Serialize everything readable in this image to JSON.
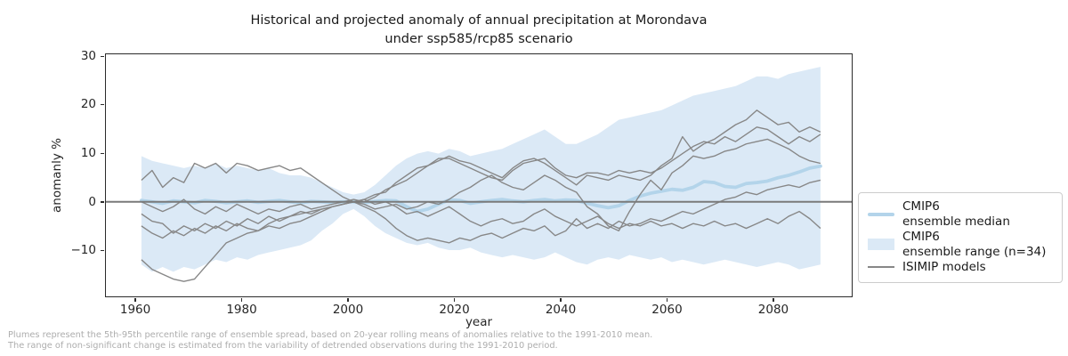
{
  "chart": {
    "title_line1": "Historical and projected anomaly of annual precipitation at Morondava",
    "title_line2": "under ssp585/rcp85 scenario",
    "xlabel": "year",
    "ylabel": "anomanly %"
  },
  "legend": {
    "items": [
      {
        "line1": "CMIP6",
        "line2": "ensemble median",
        "swatch": "median"
      },
      {
        "line1": "CMIP6",
        "line2": "ensemble range (n=34)",
        "swatch": "band"
      },
      {
        "line1": "ISIMIP models",
        "line2": "",
        "swatch": "line"
      }
    ]
  },
  "footnote": {
    "line1": "Plumes represent the 5th-95th percentile range of ensemble spread, based on 20-year rolling means of anomalies relative to the 1991-2010 mean.",
    "line2": "The range of non-significant change is estimated from the variability of detrended observations during the 1991-2010 period."
  },
  "colors": {
    "band_fill": "#dbe9f6",
    "median_line": "#b3d4ea",
    "isimip_line": "#878787",
    "zero_line": "#7a7a7a",
    "spine": "#2b2b2b",
    "footnote_text": "#adadad"
  },
  "chart_data": {
    "type": "line",
    "title": "Historical and projected anomaly of annual precipitation at Morondava under ssp585/rcp85 scenario",
    "xlabel": "year",
    "ylabel": "anomanly %",
    "xlim": [
      1954.3,
      2094.9
    ],
    "ylim": [
      -19.6,
      30.6
    ],
    "x_ticks": [
      1960,
      1980,
      2000,
      2020,
      2040,
      2060,
      2080
    ],
    "x_tick_labels": [
      "1960",
      "1980",
      "2000",
      "2020",
      "2040",
      "2060",
      "2080"
    ],
    "y_ticks": [
      -10,
      0,
      10,
      20,
      30
    ],
    "y_tick_labels": [
      "−10",
      "0",
      "10",
      "20",
      "30"
    ],
    "grid": false,
    "legend_position": "center-right outside axes",
    "zero_line": 0,
    "years": [
      1961,
      1963,
      1965,
      1967,
      1969,
      1971,
      1973,
      1975,
      1977,
      1979,
      1981,
      1983,
      1985,
      1987,
      1989,
      1991,
      1993,
      1995,
      1997,
      1999,
      2001,
      2003,
      2005,
      2007,
      2009,
      2011,
      2013,
      2015,
      2017,
      2019,
      2021,
      2023,
      2025,
      2027,
      2029,
      2031,
      2033,
      2035,
      2037,
      2039,
      2041,
      2043,
      2045,
      2047,
      2049,
      2051,
      2053,
      2055,
      2057,
      2059,
      2061,
      2063,
      2065,
      2067,
      2069,
      2071,
      2073,
      2075,
      2077,
      2079,
      2081,
      2083,
      2085,
      2087,
      2089
    ],
    "band": {
      "name": "CMIP6 ensemble range (n=34)",
      "top": [
        9.5,
        8.5,
        8.0,
        7.5,
        7.0,
        7.5,
        7.0,
        8.0,
        7.0,
        7.5,
        7.0,
        6.5,
        7.0,
        6.0,
        5.5,
        5.5,
        5.0,
        4.0,
        3.0,
        2.0,
        1.5,
        2.0,
        3.5,
        5.5,
        7.5,
        9.0,
        10.0,
        10.5,
        10.0,
        11.0,
        10.5,
        9.5,
        10.0,
        10.5,
        11.0,
        12.0,
        13.0,
        14.0,
        15.0,
        13.5,
        12.0,
        12.0,
        13.0,
        14.0,
        15.5,
        17.0,
        17.5,
        18.0,
        18.5,
        19.0,
        20.0,
        21.0,
        22.0,
        22.5,
        23.0,
        23.5,
        24.0,
        25.0,
        26.0,
        26.0,
        25.5,
        26.5,
        27.0,
        27.5,
        28.0
      ],
      "bottom": [
        -13.0,
        -14.5,
        -13.5,
        -14.5,
        -13.5,
        -14.0,
        -13.0,
        -12.0,
        -12.5,
        -11.5,
        -12.0,
        -11.0,
        -10.5,
        -10.0,
        -9.5,
        -9.0,
        -8.0,
        -6.0,
        -4.5,
        -2.5,
        -1.5,
        -3.0,
        -5.0,
        -6.5,
        -7.5,
        -8.5,
        -9.0,
        -8.5,
        -9.5,
        -10.0,
        -10.0,
        -9.5,
        -10.5,
        -11.0,
        -11.5,
        -11.0,
        -11.5,
        -12.0,
        -11.5,
        -10.5,
        -11.5,
        -12.5,
        -13.0,
        -12.0,
        -11.5,
        -12.0,
        -11.0,
        -11.5,
        -12.0,
        -11.5,
        -12.5,
        -12.0,
        -12.5,
        -13.0,
        -12.5,
        -12.0,
        -12.5,
        -13.0,
        -13.5,
        -13.0,
        -12.5,
        -13.0,
        -14.0,
        -13.5,
        -13.0
      ]
    },
    "median": {
      "name": "CMIP6 ensemble median",
      "values": [
        0.3,
        0.0,
        -0.3,
        0.2,
        0.0,
        -0.2,
        0.3,
        0.1,
        -0.2,
        0.0,
        0.2,
        -0.1,
        0.1,
        0.3,
        0.0,
        -0.2,
        0.1,
        0.0,
        -0.1,
        0.0,
        0.0,
        -0.2,
        0.1,
        0.3,
        0.2,
        -1.0,
        -2.0,
        -1.5,
        -0.5,
        0.4,
        0.3,
        -0.3,
        0.0,
        0.3,
        0.5,
        0.2,
        0.0,
        0.3,
        0.5,
        0.2,
        0.4,
        0.3,
        -0.3,
        -0.8,
        -1.2,
        -0.8,
        0.3,
        1.2,
        1.8,
        2.2,
        2.6,
        2.4,
        3.0,
        4.2,
        4.0,
        3.2,
        3.0,
        3.8,
        4.0,
        4.3,
        5.0,
        5.5,
        6.2,
        7.0,
        7.4
      ]
    },
    "isimip": {
      "name": "ISIMIP models",
      "series": [
        {
          "values": [
            4.5,
            6.5,
            3.0,
            5.0,
            4.0,
            8.0,
            7.0,
            8.0,
            6.0,
            8.0,
            7.5,
            6.5,
            7.0,
            7.5,
            6.5,
            7.0,
            5.5,
            4.0,
            2.5,
            1.0,
            0.0,
            0.5,
            1.5,
            2.0,
            4.0,
            5.5,
            7.0,
            7.5,
            9.0,
            9.0,
            8.0,
            7.0,
            6.0,
            5.0,
            4.5,
            6.5,
            8.0,
            8.5,
            9.0,
            7.0,
            5.5,
            5.0,
            6.0,
            6.0,
            5.5,
            6.5,
            6.0,
            6.5,
            6.0,
            7.0,
            8.5,
            10.0,
            11.5,
            12.5,
            12.0,
            13.5,
            12.5,
            14.0,
            15.5,
            15.0,
            13.5,
            12.0,
            13.5,
            12.5,
            14.0
          ]
        },
        {
          "values": [
            0.0,
            -1.0,
            -2.0,
            -1.0,
            0.5,
            -1.5,
            -2.5,
            -1.0,
            -2.0,
            -0.5,
            -1.5,
            -2.5,
            -1.5,
            -2.0,
            -1.0,
            -0.5,
            -1.5,
            -1.0,
            -0.5,
            0.0,
            0.5,
            0.0,
            1.0,
            2.5,
            3.5,
            4.5,
            6.0,
            7.5,
            8.5,
            9.5,
            8.5,
            8.0,
            7.0,
            6.0,
            5.0,
            7.0,
            8.5,
            9.0,
            8.0,
            6.5,
            5.0,
            3.5,
            5.5,
            5.0,
            4.5,
            5.5,
            5.0,
            4.5,
            5.5,
            7.5,
            9.0,
            13.5,
            10.5,
            12.0,
            13.0,
            14.5,
            16.0,
            17.0,
            19.0,
            17.5,
            16.0,
            16.5,
            14.5,
            15.5,
            14.5
          ]
        },
        {
          "values": [
            -2.5,
            -4.0,
            -4.5,
            -6.5,
            -5.0,
            -6.0,
            -4.5,
            -5.5,
            -4.0,
            -5.0,
            -3.5,
            -4.5,
            -3.0,
            -4.0,
            -3.0,
            -2.0,
            -2.5,
            -1.5,
            -1.0,
            -0.5,
            0.0,
            -0.5,
            -1.5,
            -1.0,
            -0.5,
            -1.5,
            -1.0,
            0.0,
            -0.5,
            0.5,
            2.0,
            3.0,
            4.5,
            5.5,
            4.0,
            3.0,
            2.5,
            4.0,
            5.5,
            4.5,
            3.0,
            2.0,
            -1.0,
            -2.5,
            -5.0,
            -6.0,
            -2.0,
            1.5,
            4.5,
            2.5,
            6.0,
            7.5,
            9.5,
            9.0,
            9.5,
            10.5,
            11.0,
            12.0,
            12.5,
            13.0,
            12.0,
            11.0,
            9.5,
            8.5,
            8.0
          ]
        },
        {
          "values": [
            -5.0,
            -6.5,
            -7.5,
            -6.0,
            -7.0,
            -5.5,
            -6.5,
            -5.0,
            -6.0,
            -4.5,
            -5.5,
            -6.0,
            -5.0,
            -5.5,
            -4.5,
            -4.0,
            -3.0,
            -2.0,
            -1.0,
            -0.5,
            0.0,
            -1.0,
            -2.0,
            -3.5,
            -5.5,
            -7.0,
            -8.0,
            -7.5,
            -8.0,
            -8.5,
            -7.5,
            -8.0,
            -7.0,
            -6.5,
            -7.5,
            -6.5,
            -5.5,
            -6.0,
            -5.0,
            -7.0,
            -6.0,
            -3.5,
            -5.5,
            -4.5,
            -5.5,
            -4.0,
            -5.0,
            -4.5,
            -3.5,
            -4.0,
            -3.0,
            -2.0,
            -2.5,
            -1.5,
            -0.5,
            0.5,
            1.0,
            2.0,
            1.5,
            2.5,
            3.0,
            3.5,
            3.0,
            4.0,
            4.5
          ]
        },
        {
          "values": [
            -12.0,
            -14.0,
            -15.0,
            -16.0,
            -16.5,
            -16.0,
            -13.5,
            -11.0,
            -8.5,
            -7.5,
            -6.5,
            -6.0,
            -4.5,
            -3.5,
            -3.0,
            -2.5,
            -2.0,
            -1.5,
            -1.0,
            -0.5,
            0.0,
            0.5,
            -0.5,
            0.0,
            -1.0,
            -2.5,
            -2.0,
            -3.0,
            -2.0,
            -1.0,
            -2.5,
            -4.0,
            -5.0,
            -4.0,
            -3.5,
            -4.5,
            -4.0,
            -2.5,
            -1.5,
            -3.0,
            -4.0,
            -5.0,
            -4.0,
            -3.0,
            -4.5,
            -5.5,
            -4.5,
            -5.0,
            -4.0,
            -5.0,
            -4.5,
            -5.5,
            -4.5,
            -5.0,
            -4.0,
            -5.0,
            -4.5,
            -5.5,
            -4.5,
            -3.5,
            -4.5,
            -3.0,
            -2.0,
            -3.5,
            -5.5
          ]
        }
      ]
    }
  }
}
